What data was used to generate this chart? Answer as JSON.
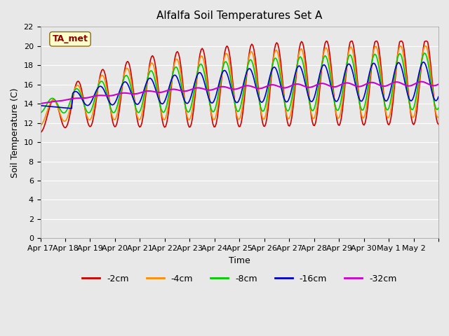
{
  "title": "Alfalfa Soil Temperatures Set A",
  "xlabel": "Time",
  "ylabel": "Soil Temperature (C)",
  "ylim": [
    0,
    22
  ],
  "yticks": [
    0,
    2,
    4,
    6,
    8,
    10,
    12,
    14,
    16,
    18,
    20,
    22
  ],
  "bg_color": "#e8e8e8",
  "plot_bg_color": "#e8e8e8",
  "annotation_label": "TA_met",
  "annotation_color": "#8b0000",
  "annotation_bg": "#ffffcc",
  "series_colors": {
    "-2cm": "#cc0000",
    "-4cm": "#ff8c00",
    "-8cm": "#00cc00",
    "-16cm": "#0000cc",
    "-32cm": "#cc00cc"
  },
  "x_tick_labels": [
    "Apr 17",
    "Apr 18",
    "Apr 19",
    "Apr 20",
    "Apr 21",
    "Apr 22",
    "Apr 23",
    "Apr 24",
    "Apr 25",
    "Apr 26",
    "Apr 27",
    "Apr 28",
    "Apr 29",
    "Apr 30",
    "May 1",
    "May 2",
    ""
  ],
  "n_points": 370
}
